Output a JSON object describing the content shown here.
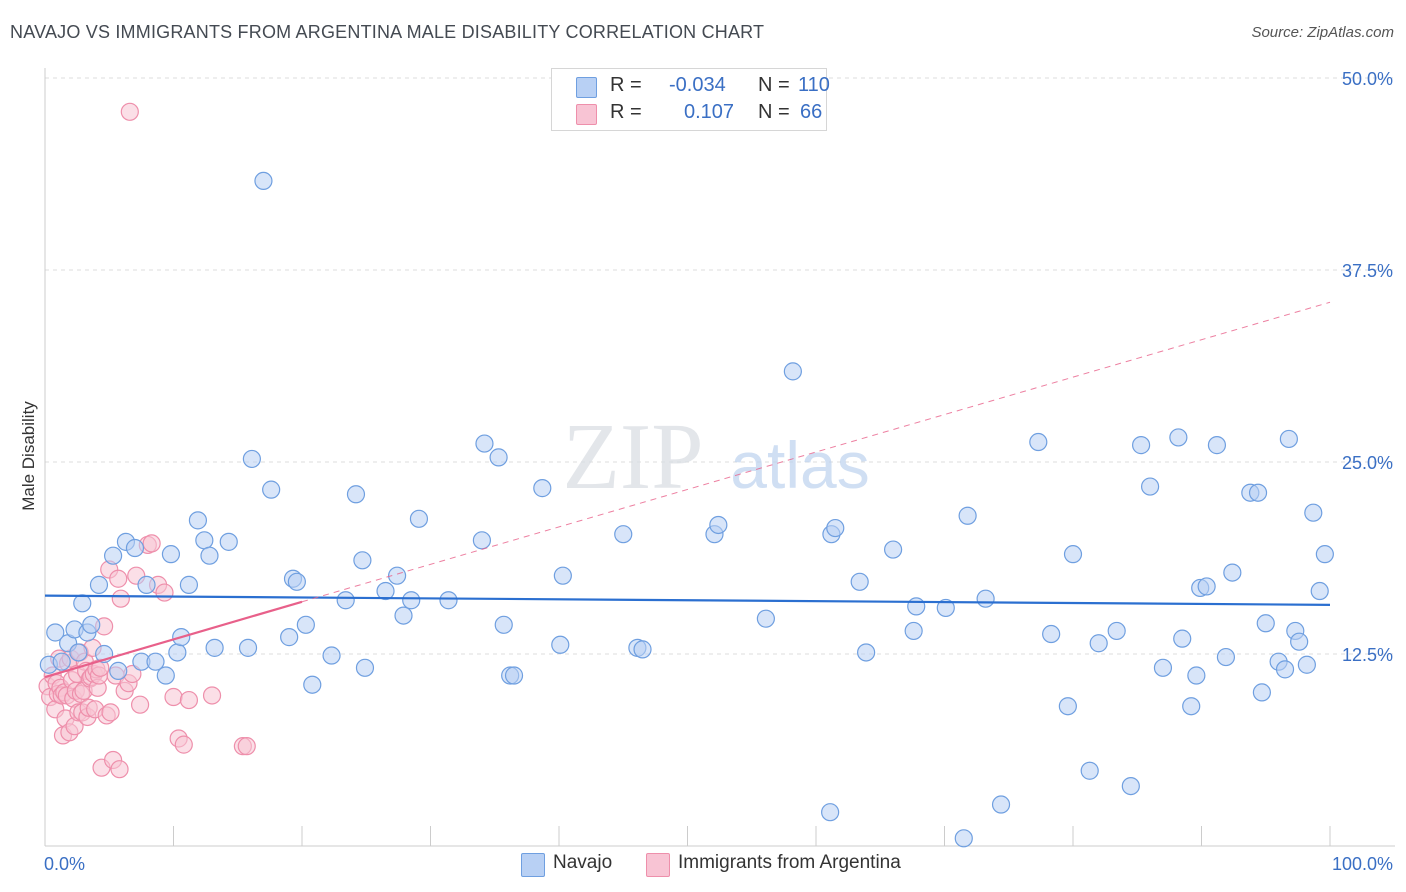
{
  "title": "NAVAJO VS IMMIGRANTS FROM ARGENTINA MALE DISABILITY CORRELATION CHART",
  "source": "Source: ZipAtlas.com",
  "legend": {
    "r_label": "R =",
    "n_label": "N =",
    "navajo": {
      "r": "-0.034",
      "n": "110"
    },
    "argentina": {
      "r": "0.107",
      "n": "66"
    }
  },
  "bottom_legend": {
    "navajo": "Navajo",
    "argentina": "Immigrants from Argentina"
  },
  "watermark": {
    "zip": "ZIP",
    "atlas": "atlas"
  },
  "colors": {
    "navajo_fill": "#b8d0f4",
    "navajo_stroke": "#6f9fe0",
    "navajo_line": "#2b6fd0",
    "argentina_fill": "#f8c4d4",
    "argentina_stroke": "#ee8fab",
    "argentina_line": "#e8608a",
    "tick_label": "#3a6fc4"
  },
  "chart_data": {
    "type": "scatter",
    "title": "NAVAJO VS IMMIGRANTS FROM ARGENTINA MALE DISABILITY CORRELATION CHART",
    "xlabel": "",
    "ylabel": "Male Disability",
    "xlim": [
      0,
      100
    ],
    "ylim": [
      0,
      50
    ],
    "x_tick_labels": [
      "0.0%",
      "100.0%"
    ],
    "y_ticks": [
      12.5,
      25.0,
      37.5,
      50.0
    ],
    "y_tick_labels": [
      "12.5%",
      "25.0%",
      "37.5%",
      "50.0%"
    ],
    "series": [
      {
        "name": "Navajo",
        "r": -0.034,
        "n": 110,
        "trend": {
          "x": [
            0,
            100
          ],
          "y": [
            16.3,
            15.7
          ],
          "style": "solid"
        },
        "points": [
          [
            0.3,
            11.8
          ],
          [
            0.8,
            13.9
          ],
          [
            1.3,
            12.0
          ],
          [
            1.8,
            13.2
          ],
          [
            2.3,
            14.1
          ],
          [
            2.6,
            12.6
          ],
          [
            2.9,
            15.8
          ],
          [
            3.3,
            13.9
          ],
          [
            3.6,
            14.4
          ],
          [
            4.2,
            17.0
          ],
          [
            4.6,
            12.5
          ],
          [
            5.3,
            18.9
          ],
          [
            5.7,
            11.4
          ],
          [
            6.3,
            19.8
          ],
          [
            7.0,
            19.4
          ],
          [
            7.5,
            12.0
          ],
          [
            7.9,
            17.0
          ],
          [
            8.6,
            12.0
          ],
          [
            9.4,
            11.1
          ],
          [
            9.8,
            19.0
          ],
          [
            10.3,
            12.6
          ],
          [
            10.6,
            13.6
          ],
          [
            11.2,
            17.0
          ],
          [
            11.9,
            21.2
          ],
          [
            12.4,
            19.9
          ],
          [
            12.8,
            18.9
          ],
          [
            13.2,
            12.9
          ],
          [
            14.3,
            19.8
          ],
          [
            15.8,
            12.9
          ],
          [
            16.1,
            25.2
          ],
          [
            17.0,
            43.3
          ],
          [
            17.6,
            23.2
          ],
          [
            19.0,
            13.6
          ],
          [
            19.3,
            17.4
          ],
          [
            19.6,
            17.2
          ],
          [
            20.3,
            14.4
          ],
          [
            20.8,
            10.5
          ],
          [
            22.3,
            12.4
          ],
          [
            23.4,
            16.0
          ],
          [
            24.2,
            22.9
          ],
          [
            24.7,
            18.6
          ],
          [
            24.9,
            11.6
          ],
          [
            26.5,
            16.6
          ],
          [
            27.4,
            17.6
          ],
          [
            27.9,
            15.0
          ],
          [
            28.5,
            16.0
          ],
          [
            29.1,
            21.3
          ],
          [
            31.4,
            16.0
          ],
          [
            34.0,
            19.9
          ],
          [
            34.2,
            26.2
          ],
          [
            35.3,
            25.3
          ],
          [
            35.7,
            14.4
          ],
          [
            36.2,
            11.1
          ],
          [
            36.5,
            11.1
          ],
          [
            38.7,
            23.3
          ],
          [
            40.1,
            13.1
          ],
          [
            40.3,
            17.6
          ],
          [
            45.0,
            20.3
          ],
          [
            46.1,
            12.9
          ],
          [
            46.5,
            12.8
          ],
          [
            52.1,
            20.3
          ],
          [
            52.4,
            20.9
          ],
          [
            56.1,
            14.8
          ],
          [
            58.2,
            30.9
          ],
          [
            61.1,
            2.2
          ],
          [
            61.2,
            20.3
          ],
          [
            61.5,
            20.7
          ],
          [
            63.4,
            17.2
          ],
          [
            63.9,
            12.6
          ],
          [
            66.0,
            19.3
          ],
          [
            67.6,
            14.0
          ],
          [
            67.8,
            15.6
          ],
          [
            70.1,
            15.5
          ],
          [
            71.5,
            0.5
          ],
          [
            71.8,
            21.5
          ],
          [
            73.2,
            16.1
          ],
          [
            74.4,
            2.7
          ],
          [
            77.3,
            26.3
          ],
          [
            78.3,
            13.8
          ],
          [
            79.6,
            9.1
          ],
          [
            80.0,
            19.0
          ],
          [
            81.3,
            4.9
          ],
          [
            82.0,
            13.2
          ],
          [
            83.4,
            14.0
          ],
          [
            84.5,
            3.9
          ],
          [
            85.3,
            26.1
          ],
          [
            86.0,
            23.4
          ],
          [
            87.0,
            11.6
          ],
          [
            88.2,
            26.6
          ],
          [
            88.5,
            13.5
          ],
          [
            89.2,
            9.1
          ],
          [
            89.6,
            11.1
          ],
          [
            89.9,
            16.8
          ],
          [
            90.4,
            16.9
          ],
          [
            91.2,
            26.1
          ],
          [
            91.9,
            12.3
          ],
          [
            92.4,
            17.8
          ],
          [
            93.8,
            23.0
          ],
          [
            94.4,
            23.0
          ],
          [
            94.7,
            10.0
          ],
          [
            95.0,
            14.5
          ],
          [
            96.0,
            12.0
          ],
          [
            96.5,
            11.5
          ],
          [
            96.8,
            26.5
          ],
          [
            97.3,
            14.0
          ],
          [
            97.6,
            13.3
          ],
          [
            98.2,
            11.8
          ],
          [
            98.7,
            21.7
          ],
          [
            99.2,
            16.6
          ],
          [
            99.6,
            19.0
          ]
        ]
      },
      {
        "name": "Immigrants from Argentina",
        "r": 0.107,
        "n": 66,
        "trend": {
          "x": [
            0,
            20,
            100
          ],
          "y": [
            11.0,
            15.9,
            35.4
          ],
          "style": "solid-then-dashed"
        },
        "points": [
          [
            0.2,
            10.4
          ],
          [
            0.4,
            9.7
          ],
          [
            0.6,
            11.1
          ],
          [
            0.8,
            8.9
          ],
          [
            0.9,
            10.6
          ],
          [
            1.0,
            9.9
          ],
          [
            1.1,
            12.2
          ],
          [
            1.2,
            10.3
          ],
          [
            1.3,
            9.8
          ],
          [
            1.4,
            7.2
          ],
          [
            1.5,
            10.0
          ],
          [
            1.6,
            8.3
          ],
          [
            1.7,
            9.8
          ],
          [
            1.8,
            11.9
          ],
          [
            1.9,
            7.4
          ],
          [
            2.0,
            12.2
          ],
          [
            2.1,
            10.8
          ],
          [
            2.2,
            9.6
          ],
          [
            2.3,
            7.8
          ],
          [
            2.4,
            10.1
          ],
          [
            2.5,
            11.2
          ],
          [
            2.6,
            8.7
          ],
          [
            2.7,
            12.6
          ],
          [
            2.8,
            9.9
          ],
          [
            2.9,
            8.7
          ],
          [
            3.0,
            10.1
          ],
          [
            3.1,
            12.0
          ],
          [
            3.2,
            11.4
          ],
          [
            3.3,
            8.4
          ],
          [
            3.4,
            9.0
          ],
          [
            3.5,
            10.9
          ],
          [
            3.6,
            11.0
          ],
          [
            3.7,
            12.9
          ],
          [
            3.8,
            11.2
          ],
          [
            3.9,
            8.9
          ],
          [
            4.0,
            11.5
          ],
          [
            4.1,
            10.3
          ],
          [
            4.2,
            11.1
          ],
          [
            4.3,
            11.6
          ],
          [
            4.4,
            5.1
          ],
          [
            4.6,
            14.3
          ],
          [
            4.8,
            8.5
          ],
          [
            5.0,
            18.0
          ],
          [
            5.1,
            8.7
          ],
          [
            5.3,
            5.6
          ],
          [
            5.5,
            11.1
          ],
          [
            5.7,
            17.4
          ],
          [
            5.9,
            16.1
          ],
          [
            6.2,
            10.1
          ],
          [
            6.5,
            10.6
          ],
          [
            6.8,
            11.2
          ],
          [
            7.1,
            17.6
          ],
          [
            7.4,
            9.2
          ],
          [
            8.0,
            19.6
          ],
          [
            8.3,
            19.7
          ],
          [
            8.8,
            17.0
          ],
          [
            9.3,
            16.5
          ],
          [
            10.0,
            9.7
          ],
          [
            10.4,
            7.0
          ],
          [
            10.8,
            6.6
          ],
          [
            11.2,
            9.5
          ],
          [
            13.0,
            9.8
          ],
          [
            15.4,
            6.5
          ],
          [
            15.7,
            6.5
          ],
          [
            5.8,
            5.0
          ],
          [
            6.6,
            47.8
          ]
        ]
      }
    ]
  }
}
